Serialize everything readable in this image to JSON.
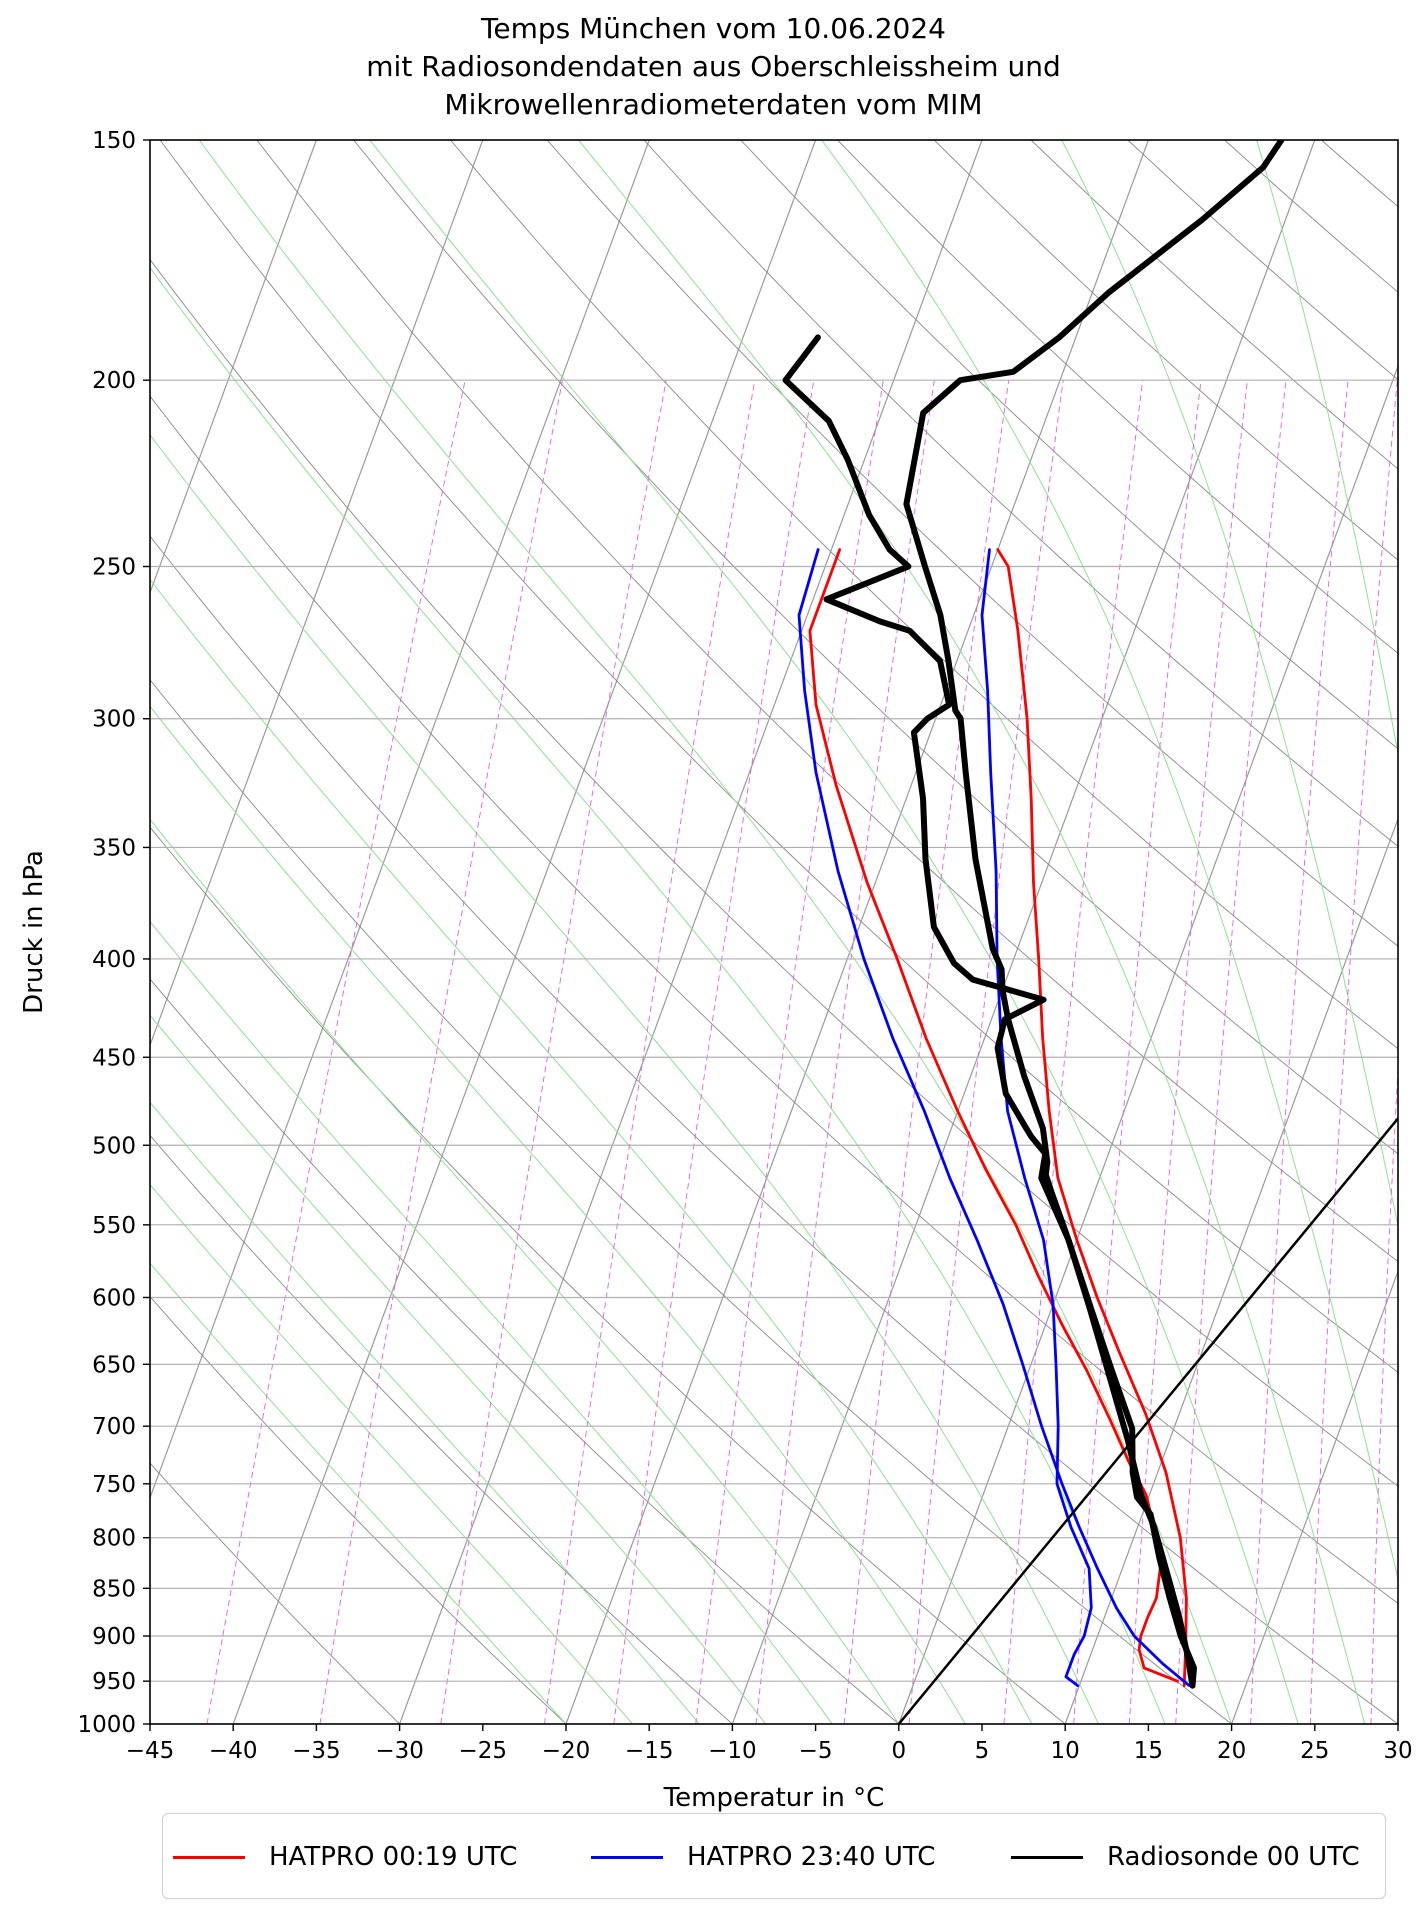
{
  "title_lines": [
    "Temps München vom 10.06.2024",
    "mit Radiosondendaten aus Oberschleissheim und",
    "Mikrowellenradiometerdaten vom MIM"
  ],
  "chart_data": {
    "type": "line",
    "subtype": "skew-T log-p diagram",
    "xlabel": "Temperatur in °C",
    "ylabel": "Druck in hPa",
    "xlim": [
      -45,
      30
    ],
    "ylim": [
      1000,
      150
    ],
    "y_scale": "log",
    "grid": true,
    "legend_position": "bottom",
    "x_ticks": [
      -45,
      -40,
      -35,
      -30,
      -25,
      -20,
      -15,
      -10,
      -5,
      0,
      5,
      10,
      15,
      20,
      25,
      30
    ],
    "y_ticks": [
      1000,
      950,
      900,
      850,
      800,
      750,
      700,
      650,
      600,
      550,
      500,
      450,
      400,
      350,
      300,
      250,
      200,
      150
    ],
    "background_lines": {
      "isotherms": "gray",
      "dry_adiabats": "gray",
      "moist_adiabats": "green",
      "mixing_ratio": "magenta dashed"
    },
    "series": [
      {
        "name": "HATPRO 00:19 UTC",
        "color": "#ff0000",
        "points": [
          [
            15.8,
            950
          ],
          [
            13.5,
            935
          ],
          [
            12.8,
            915
          ],
          [
            12.6,
            900
          ],
          [
            12.6,
            880
          ],
          [
            12.7,
            860
          ],
          [
            12.2,
            825
          ],
          [
            11.2,
            795
          ],
          [
            9.8,
            760
          ],
          [
            8.0,
            730
          ],
          [
            6.0,
            695
          ],
          [
            3.5,
            655
          ],
          [
            1.0,
            620
          ],
          [
            -1.5,
            585
          ],
          [
            -4.0,
            550
          ],
          [
            -7.0,
            515
          ],
          [
            -10.0,
            480
          ],
          [
            -13.5,
            440
          ],
          [
            -17.0,
            400
          ],
          [
            -20.5,
            365
          ],
          [
            -24.5,
            325
          ],
          [
            -27.5,
            295
          ],
          [
            -29.5,
            270
          ],
          [
            -29.5,
            245
          ]
        ]
      },
      {
        "name": "HATPRO 00:19 UTC (Taupunkt)",
        "color": "#ff0000",
        "points": [
          [
            16.3,
            955
          ],
          [
            15.5,
            910
          ],
          [
            14.5,
            860
          ],
          [
            12.8,
            800
          ],
          [
            10.5,
            740
          ],
          [
            8.0,
            690
          ],
          [
            5.0,
            640
          ],
          [
            2.5,
            600
          ],
          [
            0.0,
            560
          ],
          [
            -2.5,
            520
          ],
          [
            -4.5,
            480
          ],
          [
            -6.5,
            440
          ],
          [
            -8.5,
            400
          ],
          [
            -10.5,
            365
          ],
          [
            -12.5,
            330
          ],
          [
            -14.5,
            300
          ],
          [
            -17.0,
            270
          ],
          [
            -19.0,
            250
          ],
          [
            -20.0,
            245
          ]
        ]
      },
      {
        "name": "HATPRO 23:40 UTC",
        "color": "#0000ff",
        "points": [
          [
            16.6,
            955
          ],
          [
            14.5,
            930
          ],
          [
            12.2,
            900
          ],
          [
            10.5,
            870
          ],
          [
            8.5,
            830
          ],
          [
            6.5,
            790
          ],
          [
            4.5,
            750
          ],
          [
            2.0,
            700
          ],
          [
            -0.5,
            650
          ],
          [
            -3.0,
            605
          ],
          [
            -6.0,
            560
          ],
          [
            -9.0,
            520
          ],
          [
            -12.0,
            480
          ],
          [
            -15.5,
            440
          ],
          [
            -19.0,
            400
          ],
          [
            -22.5,
            360
          ],
          [
            -26.0,
            320
          ],
          [
            -28.5,
            290
          ],
          [
            -30.5,
            265
          ],
          [
            -30.8,
            245
          ]
        ]
      },
      {
        "name": "HATPRO 23:40 UTC (Taupunkt)",
        "color": "#0000ff",
        "points": [
          [
            9.9,
            955
          ],
          [
            9.0,
            945
          ],
          [
            9.0,
            920
          ],
          [
            9.2,
            900
          ],
          [
            9.0,
            870
          ],
          [
            8.0,
            830
          ],
          [
            6.0,
            790
          ],
          [
            4.2,
            750
          ],
          [
            3.0,
            700
          ],
          [
            1.5,
            650
          ],
          [
            0.0,
            605
          ],
          [
            -2.0,
            560
          ],
          [
            -4.5,
            520
          ],
          [
            -7.0,
            480
          ],
          [
            -9.0,
            440
          ],
          [
            -11.0,
            400
          ],
          [
            -13.0,
            360
          ],
          [
            -15.5,
            320
          ],
          [
            -17.5,
            290
          ],
          [
            -19.5,
            265
          ],
          [
            -20.5,
            245
          ]
        ]
      },
      {
        "name": "Radiosonde 00 UTC",
        "color": "#000000",
        "points": [
          [
            16.8,
            955
          ],
          [
            16.5,
            935
          ],
          [
            15.0,
            900
          ],
          [
            13.5,
            860
          ],
          [
            12.0,
            820
          ],
          [
            10.5,
            778
          ],
          [
            9.3,
            762
          ],
          [
            8.5,
            740
          ],
          [
            7.5,
            702
          ],
          [
            5.0,
            655
          ],
          [
            2.2,
            605
          ],
          [
            -0.5,
            560
          ],
          [
            -3.5,
            520
          ],
          [
            -3.8,
            505
          ],
          [
            -5.0,
            495
          ],
          [
            -5.5,
            490
          ],
          [
            -7.5,
            470
          ],
          [
            -9.0,
            445
          ],
          [
            -9.2,
            430
          ],
          [
            -7.3,
            420
          ],
          [
            -12.0,
            410
          ],
          [
            -13.5,
            402
          ],
          [
            -15.5,
            385
          ],
          [
            -17.5,
            355
          ],
          [
            -19.0,
            330
          ],
          [
            -21.0,
            305
          ],
          [
            -20.5,
            300
          ],
          [
            -19.5,
            295
          ],
          [
            -21.0,
            280
          ],
          [
            -23.5,
            270
          ],
          [
            -25.5,
            267
          ],
          [
            -29.2,
            260
          ],
          [
            -25.0,
            250
          ],
          [
            -26.5,
            245
          ],
          [
            -28.5,
            235
          ],
          [
            -31.0,
            220
          ],
          [
            -33.0,
            210
          ],
          [
            -36.5,
            200
          ],
          [
            -36.0,
            195
          ],
          [
            -35.5,
            190
          ]
        ]
      },
      {
        "name": "Radiosonde 00 UTC (Taupunkt)",
        "color": "#000000",
        "points": [
          [
            16.8,
            955
          ],
          [
            15.8,
            920
          ],
          [
            14.5,
            880
          ],
          [
            13.0,
            840
          ],
          [
            11.0,
            790
          ],
          [
            9.5,
            760
          ],
          [
            7.5,
            712
          ],
          [
            5.0,
            660
          ],
          [
            2.3,
            608
          ],
          [
            -0.5,
            560
          ],
          [
            -2.5,
            530
          ],
          [
            -3.3,
            518
          ],
          [
            -3.5,
            510
          ],
          [
            -4.5,
            490
          ],
          [
            -6.8,
            460
          ],
          [
            -9.0,
            430
          ],
          [
            -10.0,
            415
          ],
          [
            -10.5,
            405
          ],
          [
            -11.5,
            395
          ],
          [
            -14.5,
            355
          ],
          [
            -17.0,
            320
          ],
          [
            -18.5,
            300
          ],
          [
            -19.0,
            297
          ],
          [
            -20.5,
            280
          ],
          [
            -22.0,
            265
          ],
          [
            -24.0,
            250
          ],
          [
            -26.5,
            232
          ],
          [
            -27.5,
            208
          ],
          [
            -26.0,
            200
          ],
          [
            -23.0,
            198
          ],
          [
            -21.0,
            190
          ],
          [
            -19.0,
            180
          ],
          [
            -15.0,
            165
          ],
          [
            -12.5,
            155
          ],
          [
            -12.0,
            150
          ]
        ]
      },
      {
        "name": "Parcel",
        "color": "#000000",
        "points": [
          [
            0.0,
            1000
          ],
          [
            30.0,
            270
          ]
        ]
      }
    ],
    "legend_entries": [
      {
        "label": "HATPRO 00:19 UTC",
        "color": "#ff0000"
      },
      {
        "label": "HATPRO 23:40 UTC",
        "color": "#0000ff"
      },
      {
        "label": "Radiosonde 00 UTC",
        "color": "#000000"
      }
    ]
  }
}
